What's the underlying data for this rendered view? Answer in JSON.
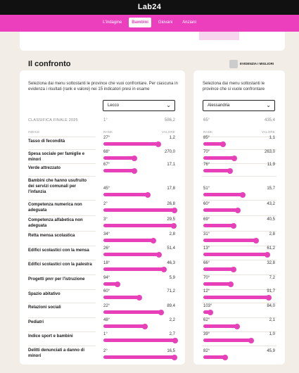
{
  "app": {
    "logo": "Lab24"
  },
  "nav": {
    "tabs": [
      {
        "label": "L'indagine",
        "active": false
      },
      {
        "label": "Bambini",
        "active": true
      },
      {
        "label": "Giovani",
        "active": false
      },
      {
        "label": "Anziani",
        "active": false
      }
    ]
  },
  "section": {
    "title": "Il confronto",
    "highlight_label": "EVIDENZIA I MIGLIORI",
    "highlight_on": false
  },
  "left": {
    "description": "Seleziona dai menu sottostanti le province che vuoi confrontare. Per ciascuna in evidenza i risultati (rank e valore) nei 15 indicatori presi in esame",
    "province": "Lecco",
    "final_label": "CLASSIFICA FINALE 2025",
    "final_rank": "1°",
    "final_value": "586,2"
  },
  "right": {
    "description": "Seleziona dai menu sottostanti le province che si vuole confrontare",
    "province": "Alessandria",
    "final_rank": "65°",
    "final_value": "435,4"
  },
  "columns": {
    "indice": "INDICE",
    "rank": "RANK",
    "valore": "VALORE"
  },
  "indicators": [
    {
      "label": "Tasso di fecondità",
      "left": {
        "rank": "27°",
        "value": "1,2",
        "level": 0.76
      },
      "right": {
        "rank": "85°",
        "value": "1,1",
        "level": 0.27
      }
    },
    {
      "label": "Spesa sociale per famiglie e minori",
      "left": {
        "rank": "68°",
        "value": "270,0",
        "level": 0.43
      },
      "right": {
        "rank": "70°",
        "value": "263,0",
        "level": 0.43
      }
    },
    {
      "label": "Verde attrezzato",
      "left": {
        "rank": "67°",
        "value": "17,1",
        "level": 0.43
      },
      "right": {
        "rank": "76°",
        "value": "11,9",
        "level": 0.37
      }
    },
    {
      "label": "Bambini che hanno usufruito dei servizi comunali per l'infanzia",
      "left": {
        "rank": "45°",
        "value": "17,8",
        "level": 0.62
      },
      "right": {
        "rank": "51°",
        "value": "15,7",
        "level": 0.55
      }
    },
    {
      "label": "Competenza numerica non adeguata",
      "left": {
        "rank": "2°",
        "value": "26,8",
        "level": 0.99
      },
      "right": {
        "rank": "60°",
        "value": "43,2",
        "level": 0.48
      }
    },
    {
      "label": "Competenza alfabetica non adeguata",
      "left": {
        "rank": "3°",
        "value": "29,5",
        "level": 0.98
      },
      "right": {
        "rank": "69°",
        "value": "40,5",
        "level": 0.42
      }
    },
    {
      "label": "Retta mensa scolastica",
      "left": {
        "rank": "34°",
        "value": "2,8",
        "level": 0.7
      },
      "right": {
        "rank": "31°",
        "value": "2,8",
        "level": 0.74
      }
    },
    {
      "label": "Edifici scolastici con la mensa",
      "left": {
        "rank": "26°",
        "value": "51,4",
        "level": 0.77
      },
      "right": {
        "rank": "13°",
        "value": "61,2",
        "level": 0.89
      }
    },
    {
      "label": "Edifici scolastici con la palestra",
      "left": {
        "rank": "18°",
        "value": "46,3",
        "level": 0.84
      },
      "right": {
        "rank": "66°",
        "value": "32,8",
        "level": 0.42
      }
    },
    {
      "label": "Progetti pnrr per l'istruzione",
      "left": {
        "rank": "94°",
        "value": "5,9",
        "level": 0.2
      },
      "right": {
        "rank": "70°",
        "value": "7,2",
        "level": 0.38
      }
    },
    {
      "label": "Spazio abitativo",
      "left": {
        "rank": "60°",
        "value": "71,2",
        "level": 0.5
      },
      "right": {
        "rank": "12°",
        "value": "91,7",
        "level": 0.91
      }
    },
    {
      "label": "Relazioni sociali",
      "left": {
        "rank": "22°",
        "value": "89,4",
        "level": 0.8
      },
      "right": {
        "rank": "103°",
        "value": "84,0",
        "level": 0.1
      }
    },
    {
      "label": "Pediatri",
      "left": {
        "rank": "48°",
        "value": "2,2",
        "level": 0.58
      },
      "right": {
        "rank": "62°",
        "value": "2,1",
        "level": 0.47
      }
    },
    {
      "label": "Indice sport e bambini",
      "left": {
        "rank": "1°",
        "value": "2,7",
        "level": 1.0
      },
      "right": {
        "rank": "39°",
        "value": "1,0",
        "level": 0.67
      }
    },
    {
      "label": "Delitti denunciati a danno di minori",
      "left": {
        "rank": "2°",
        "value": "16,5",
        "level": 0.99
      },
      "right": {
        "rank": "82°",
        "value": "45,9",
        "level": 0.3
      }
    }
  ],
  "colors": {
    "brand": "#ec3fbd",
    "bar": "#e840b9"
  }
}
